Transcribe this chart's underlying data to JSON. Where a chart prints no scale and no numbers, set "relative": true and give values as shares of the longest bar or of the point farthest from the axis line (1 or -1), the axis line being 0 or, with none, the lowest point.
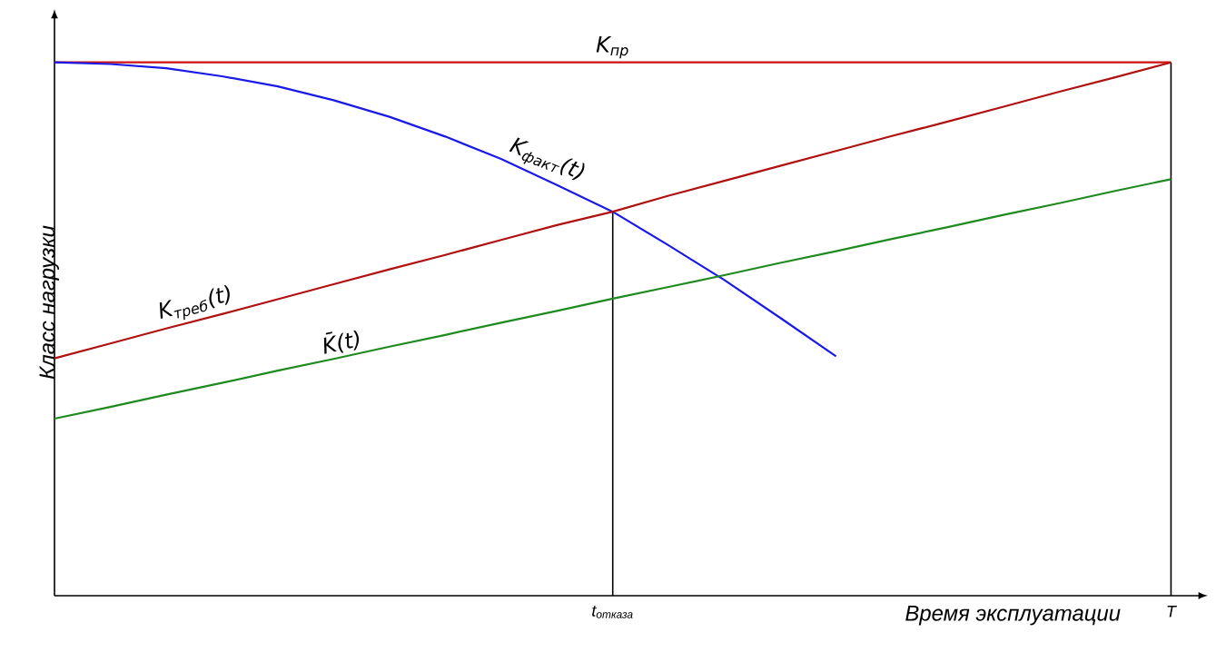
{
  "chart_data": {
    "type": "line",
    "relative": true,
    "xlabel": "Время эксплуатации",
    "ylabel": "Класс нагрузки",
    "categories": [
      null,
      null,
      null,
      null,
      null,
      null,
      null,
      null,
      null,
      null,
      "t$_{отказа}$",
      null,
      null,
      null,
      null,
      null,
      null,
      null,
      null,
      null,
      "T"
    ],
    "tick_labels": "x",
    "grid": false,
    "legend": false,
    "marker": "none",
    "line_style": "solid",
    "series": [
      {
        "name": "K$_{пр}$",
        "color": "#d01010",
        "values": [
          1,
          1,
          1,
          1,
          1,
          1,
          1,
          1,
          1,
          1,
          1,
          1,
          1,
          1,
          1,
          1,
          1,
          1,
          1,
          1,
          1
        ]
      },
      {
        "name": "K$_{факт}$(t)",
        "color": "#1a1ae6",
        "values": [
          1,
          0.997,
          0.989,
          0.974,
          0.955,
          0.929,
          0.898,
          0.861,
          0.819,
          0.77,
          0.72,
          0.657,
          0.592,
          0.521,
          0.449,
          null,
          null,
          null,
          null,
          null,
          null
        ]
      },
      {
        "name": "K$_{треб}$(t)",
        "color": "#b01010",
        "values": [
          0.445,
          0.473,
          0.501,
          0.528,
          0.556,
          0.584,
          0.612,
          0.639,
          0.667,
          0.695,
          0.72,
          0.75,
          0.778,
          0.806,
          0.834,
          0.862,
          0.889,
          0.917,
          0.945,
          0.972,
          1
        ]
      },
      {
        "name": "K̄(t)",
        "color": "#1f8a1f",
        "values": [
          0.332,
          0.354,
          0.377,
          0.399,
          0.422,
          0.444,
          0.467,
          0.489,
          0.512,
          0.534,
          0.557,
          0.579,
          0.601,
          0.624,
          0.646,
          0.669,
          0.691,
          0.714,
          0.736,
          0.759,
          0.781
        ]
      }
    ],
    "ref_lines": [
      {
        "axis": "x",
        "value": "t$_{отказа}$",
        "color": "#000000"
      },
      {
        "axis": "x",
        "value": "T",
        "color": "#000000"
      }
    ]
  }
}
